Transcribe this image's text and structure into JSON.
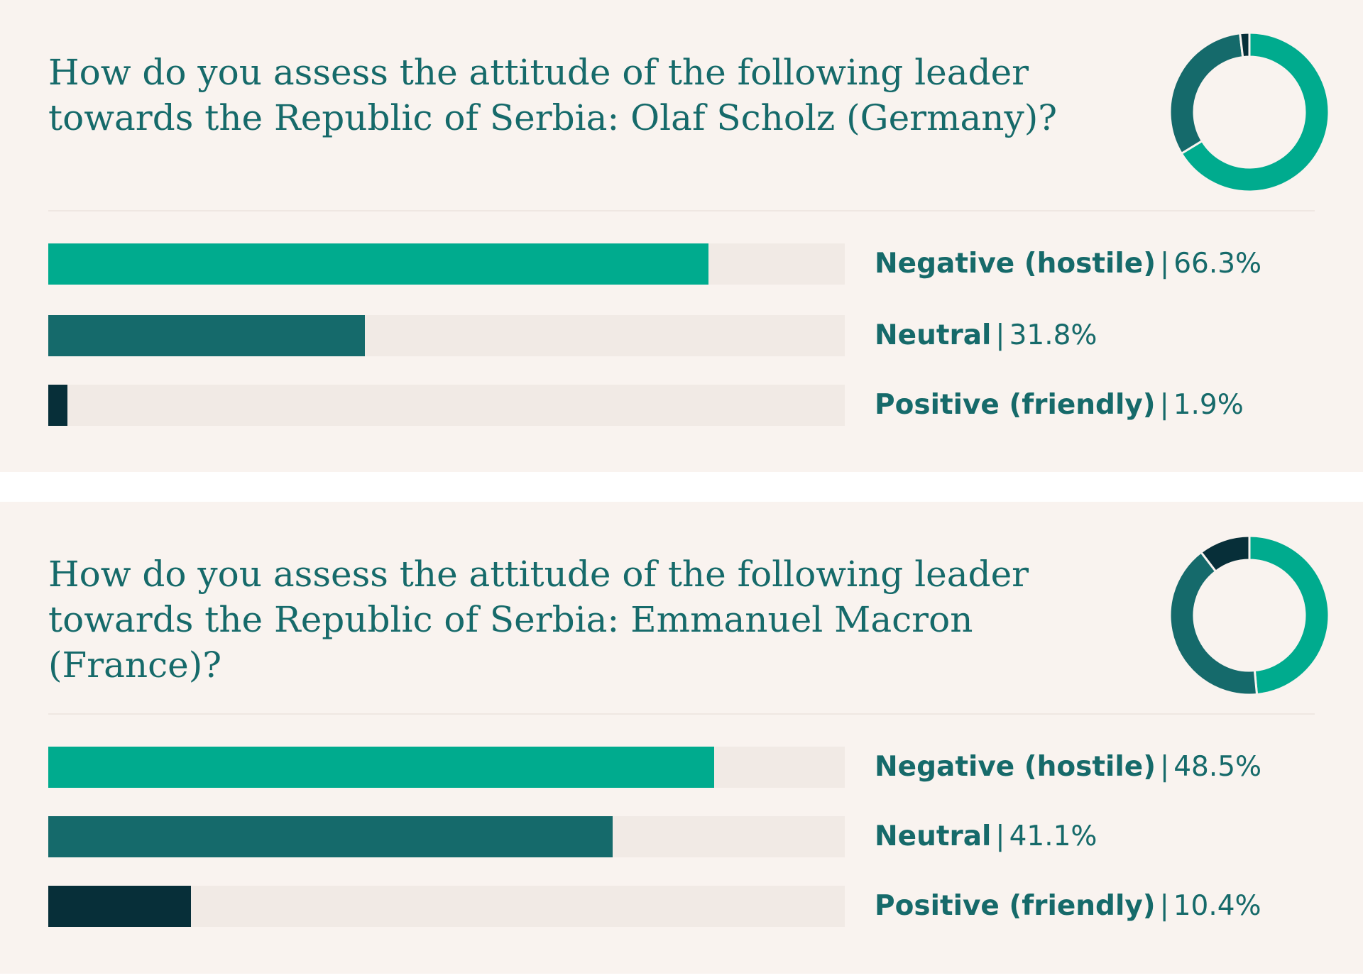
{
  "colors": {
    "negative": "#00ab8e",
    "neutral": "#156a6b",
    "positive": "#072f39",
    "track": "#f1eae5",
    "text": "#166a6a"
  },
  "separator": "|",
  "chart_data": [
    {
      "type": "bar",
      "title": "How do you assess the attitude of the following leader towards the Republic of Serbia: Olaf Scholz (Germany)?",
      "categories": [
        "Negative (hostile)",
        "Neutral",
        "Positive (friendly)"
      ],
      "values": [
        66.3,
        31.8,
        1.9
      ],
      "value_labels": [
        "66.3%",
        "31.8%",
        "1.9%"
      ],
      "ylim": [
        0,
        80
      ]
    },
    {
      "type": "bar",
      "title": "How do you assess the attitude of the following leader towards the Republic of Serbia: Emmanuel Macron (France)?",
      "categories": [
        "Negative (hostile)",
        "Neutral",
        "Positive (friendly)"
      ],
      "values": [
        48.5,
        41.1,
        10.4
      ],
      "value_labels": [
        "48.5%",
        "41.1%",
        "10.4%"
      ],
      "ylim": [
        0,
        58
      ]
    }
  ]
}
